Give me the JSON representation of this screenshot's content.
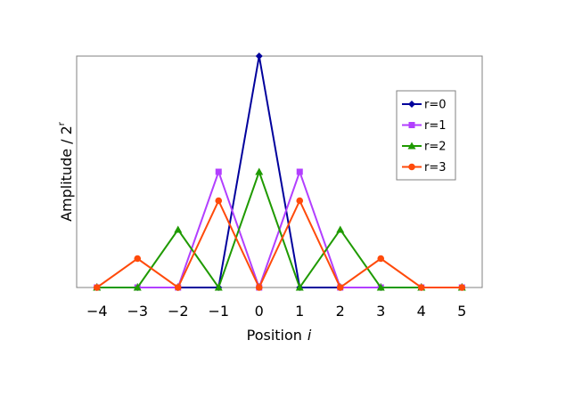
{
  "chart_data": {
    "type": "line",
    "xlabel": "Position",
    "xlabel_var": "i",
    "ylabel": "Amplitude / 2",
    "ylabel_sup": "r",
    "x": [
      -4,
      -3,
      -2,
      -1,
      0,
      1,
      2,
      3,
      4,
      5
    ],
    "xtick_labels": [
      "−4",
      "−3",
      "−2",
      "−1",
      "0",
      "1",
      "2",
      "3",
      "4",
      "5"
    ],
    "xlim": [
      -4.5,
      5.5
    ],
    "ylim": [
      0,
      1.0
    ],
    "grid": false,
    "legend_position": "right",
    "series": [
      {
        "name": "r=0",
        "color": "#00009c",
        "marker": "diamond",
        "values": [
          0,
          0,
          0,
          0,
          1.0,
          0,
          0,
          0,
          0,
          0
        ]
      },
      {
        "name": "r=1",
        "color": "#b23fff",
        "marker": "square",
        "values": [
          0,
          0,
          0,
          0.5,
          0,
          0.5,
          0,
          0,
          0,
          0
        ]
      },
      {
        "name": "r=2",
        "color": "#1f9a00",
        "marker": "triangle",
        "values": [
          0,
          0,
          0.25,
          0,
          0.5,
          0,
          0.25,
          0,
          0,
          0
        ]
      },
      {
        "name": "r=3",
        "color": "#ff4a0a",
        "marker": "circle",
        "values": [
          0,
          0.125,
          0,
          0.375,
          0,
          0.375,
          0,
          0.125,
          0,
          0
        ]
      }
    ]
  }
}
